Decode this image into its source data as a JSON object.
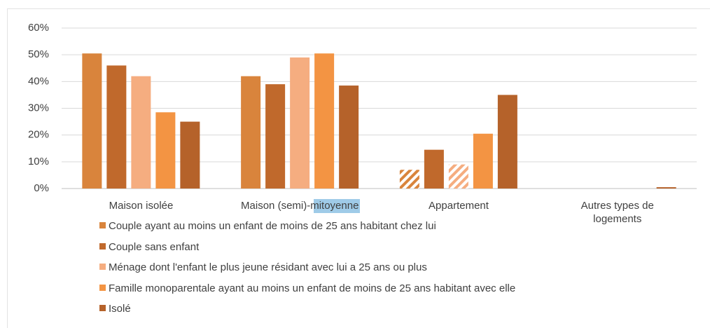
{
  "chart_data": {
    "type": "bar",
    "categories": [
      "Maison isolée",
      "Maison (semi)-mitoyenne",
      "Appartement",
      "Autres types de\nlogements"
    ],
    "series": [
      {
        "name": "Couple ayant au moins un enfant de moins de 25 ans habitant chez lui",
        "color": "#d9843c",
        "values": [
          50.5,
          42,
          7,
          0
        ],
        "hatched_categories": [
          2
        ]
      },
      {
        "name": "Couple sans enfant",
        "color": "#c0692c",
        "values": [
          46,
          39,
          14.5,
          0
        ]
      },
      {
        "name": "Ménage dont l'enfant le plus jeune résidant avec lui a 25 ans ou plus",
        "color": "#f5ad80",
        "values": [
          42,
          49,
          9,
          0
        ],
        "hatched_categories": [
          2
        ]
      },
      {
        "name": "Famille monoparentale ayant au moins un enfant de moins de 25 ans habitant avec elle",
        "color": "#f39443",
        "values": [
          28.5,
          50.5,
          20.5,
          0
        ]
      },
      {
        "name": "Isolé",
        "color": "#b5622a",
        "values": [
          25,
          38.5,
          35,
          0.5
        ]
      }
    ],
    "ylim": [
      0,
      60
    ],
    "yticks": [
      {
        "value": 0,
        "label": "0%"
      },
      {
        "value": 10,
        "label": "10%"
      },
      {
        "value": 20,
        "label": "20%"
      },
      {
        "value": 30,
        "label": "30%"
      },
      {
        "value": 40,
        "label": "40%"
      },
      {
        "value": 50,
        "label": "50%"
      },
      {
        "value": 60,
        "label": "60%"
      }
    ],
    "grid": true,
    "legend": "bottom"
  }
}
